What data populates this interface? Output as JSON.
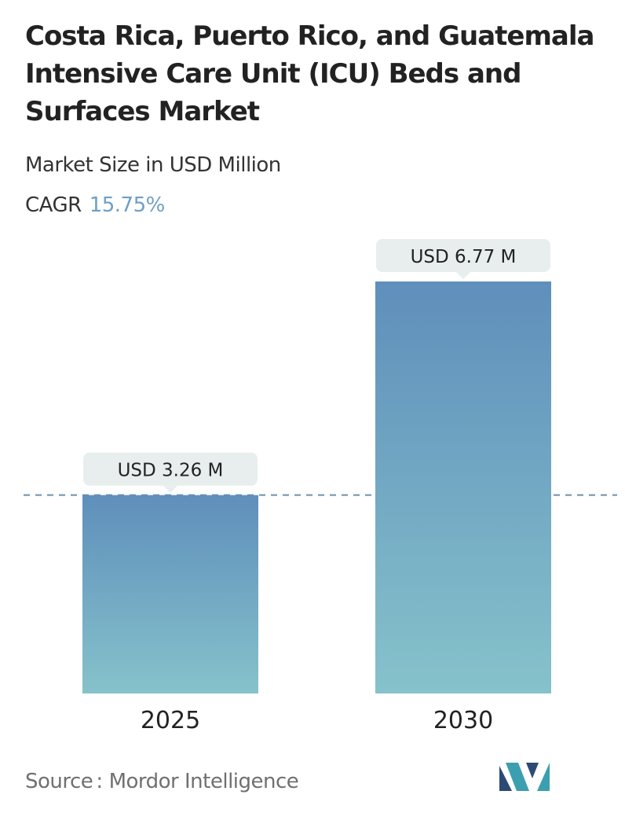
{
  "header": {
    "title": "Costa Rica, Puerto Rico, and Guatemala Intensive Care Unit (ICU) Beds and Surfaces Market",
    "subtitle": "Market Size in USD Million",
    "cagr_label": "CAGR",
    "cagr_value": "15.75%"
  },
  "chart_data": {
    "type": "bar",
    "title": "Costa Rica, Puerto Rico, and Guatemala Intensive Care Unit (ICU) Beds and Surfaces Market",
    "ylabel": "Market Size in USD Million",
    "categories": [
      "2025",
      "2030"
    ],
    "values": [
      3.26,
      6.77
    ],
    "data_labels": [
      "USD 3.26 M",
      "USD 6.77 M"
    ],
    "ylim": [
      0,
      6.77
    ],
    "grid": false,
    "reference_line": 3.26,
    "colors": {
      "bar_top": "#5f8fbb",
      "bar_bottom": "#86c2cb",
      "label_bg": "#e8eeee",
      "reference_line": "#6e8faa"
    }
  },
  "footer": {
    "source_label": "Source",
    "source_separator": ":",
    "source_value": "Mordor Intelligence"
  },
  "brand": {
    "logo_icon": "mordor-intelligence-logo-icon",
    "logo_colors": [
      "#2d4a75",
      "#3c9fb0"
    ]
  }
}
